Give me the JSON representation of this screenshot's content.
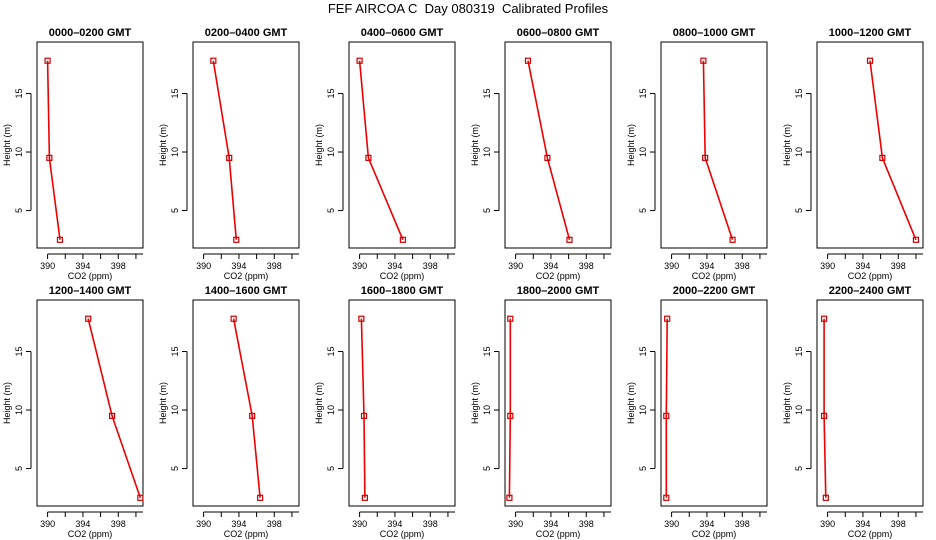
{
  "figure": {
    "title": "FEF AIRCOA C  Day 080319  Calibrated Profiles"
  },
  "axes": {
    "xlabel": "CO2 (ppm)",
    "ylabel": "Height (m)",
    "xticks": [
      390,
      394,
      398
    ],
    "yticks": [
      5,
      10,
      15
    ],
    "xlim": [
      388.8,
      400.8
    ],
    "ylim": [
      1.8,
      19.4
    ],
    "line_color": "#ee0000",
    "marker_color": "#cc0000"
  },
  "chart_data": [
    {
      "type": "line",
      "title": "0000–0200 GMT",
      "xlabel": "CO2 (ppm)",
      "ylabel": "Height (m)",
      "points": [
        {
          "x": 390.0,
          "y": 17.8
        },
        {
          "x": 390.2,
          "y": 9.5
        },
        {
          "x": 391.4,
          "y": 2.5
        }
      ]
    },
    {
      "type": "line",
      "title": "0200–0400 GMT",
      "xlabel": "CO2 (ppm)",
      "ylabel": "Height (m)",
      "points": [
        {
          "x": 391.1,
          "y": 17.8
        },
        {
          "x": 392.9,
          "y": 9.5
        },
        {
          "x": 393.7,
          "y": 2.5
        }
      ]
    },
    {
      "type": "line",
      "title": "0400–0600 GMT",
      "xlabel": "CO2 (ppm)",
      "ylabel": "Height (m)",
      "points": [
        {
          "x": 390.0,
          "y": 17.8
        },
        {
          "x": 391.0,
          "y": 9.5
        },
        {
          "x": 394.9,
          "y": 2.5
        }
      ]
    },
    {
      "type": "line",
      "title": "0600–0800 GMT",
      "xlabel": "CO2 (ppm)",
      "ylabel": "Height (m)",
      "points": [
        {
          "x": 391.4,
          "y": 17.8
        },
        {
          "x": 393.6,
          "y": 9.5
        },
        {
          "x": 396.1,
          "y": 2.5
        }
      ]
    },
    {
      "type": "line",
      "title": "0800–1000 GMT",
      "xlabel": "CO2 (ppm)",
      "ylabel": "Height (m)",
      "points": [
        {
          "x": 393.6,
          "y": 17.8
        },
        {
          "x": 393.8,
          "y": 9.5
        },
        {
          "x": 396.9,
          "y": 2.5
        }
      ]
    },
    {
      "type": "line",
      "title": "1000–1200 GMT",
      "xlabel": "CO2 (ppm)",
      "ylabel": "Height (m)",
      "points": [
        {
          "x": 394.8,
          "y": 17.8
        },
        {
          "x": 396.2,
          "y": 9.5
        },
        {
          "x": 400.0,
          "y": 2.5
        }
      ]
    },
    {
      "type": "line",
      "title": "1200–1400 GMT",
      "xlabel": "CO2 (ppm)",
      "ylabel": "Height (m)",
      "points": [
        {
          "x": 394.6,
          "y": 17.8
        },
        {
          "x": 397.3,
          "y": 9.5
        },
        {
          "x": 400.5,
          "y": 2.5
        }
      ]
    },
    {
      "type": "line",
      "title": "1400–1600 GMT",
      "xlabel": "CO2 (ppm)",
      "ylabel": "Height (m)",
      "points": [
        {
          "x": 393.4,
          "y": 17.8
        },
        {
          "x": 395.5,
          "y": 9.5
        },
        {
          "x": 396.4,
          "y": 2.5
        }
      ]
    },
    {
      "type": "line",
      "title": "1600–1800 GMT",
      "xlabel": "CO2 (ppm)",
      "ylabel": "Height (m)",
      "points": [
        {
          "x": 390.2,
          "y": 17.8
        },
        {
          "x": 390.5,
          "y": 9.5
        },
        {
          "x": 390.6,
          "y": 2.5
        }
      ]
    },
    {
      "type": "line",
      "title": "1800–2000 GMT",
      "xlabel": "CO2 (ppm)",
      "ylabel": "Height (m)",
      "points": [
        {
          "x": 389.4,
          "y": 17.8
        },
        {
          "x": 389.4,
          "y": 9.5
        },
        {
          "x": 389.3,
          "y": 2.5
        }
      ]
    },
    {
      "type": "line",
      "title": "2000–2200 GMT",
      "xlabel": "CO2 (ppm)",
      "ylabel": "Height (m)",
      "points": [
        {
          "x": 389.5,
          "y": 17.8
        },
        {
          "x": 389.4,
          "y": 9.5
        },
        {
          "x": 389.4,
          "y": 2.5
        }
      ]
    },
    {
      "type": "line",
      "title": "2200–2400 GMT",
      "xlabel": "CO2 (ppm)",
      "ylabel": "Height (m)",
      "points": [
        {
          "x": 389.6,
          "y": 17.8
        },
        {
          "x": 389.6,
          "y": 9.5
        },
        {
          "x": 389.8,
          "y": 2.5
        }
      ]
    }
  ]
}
